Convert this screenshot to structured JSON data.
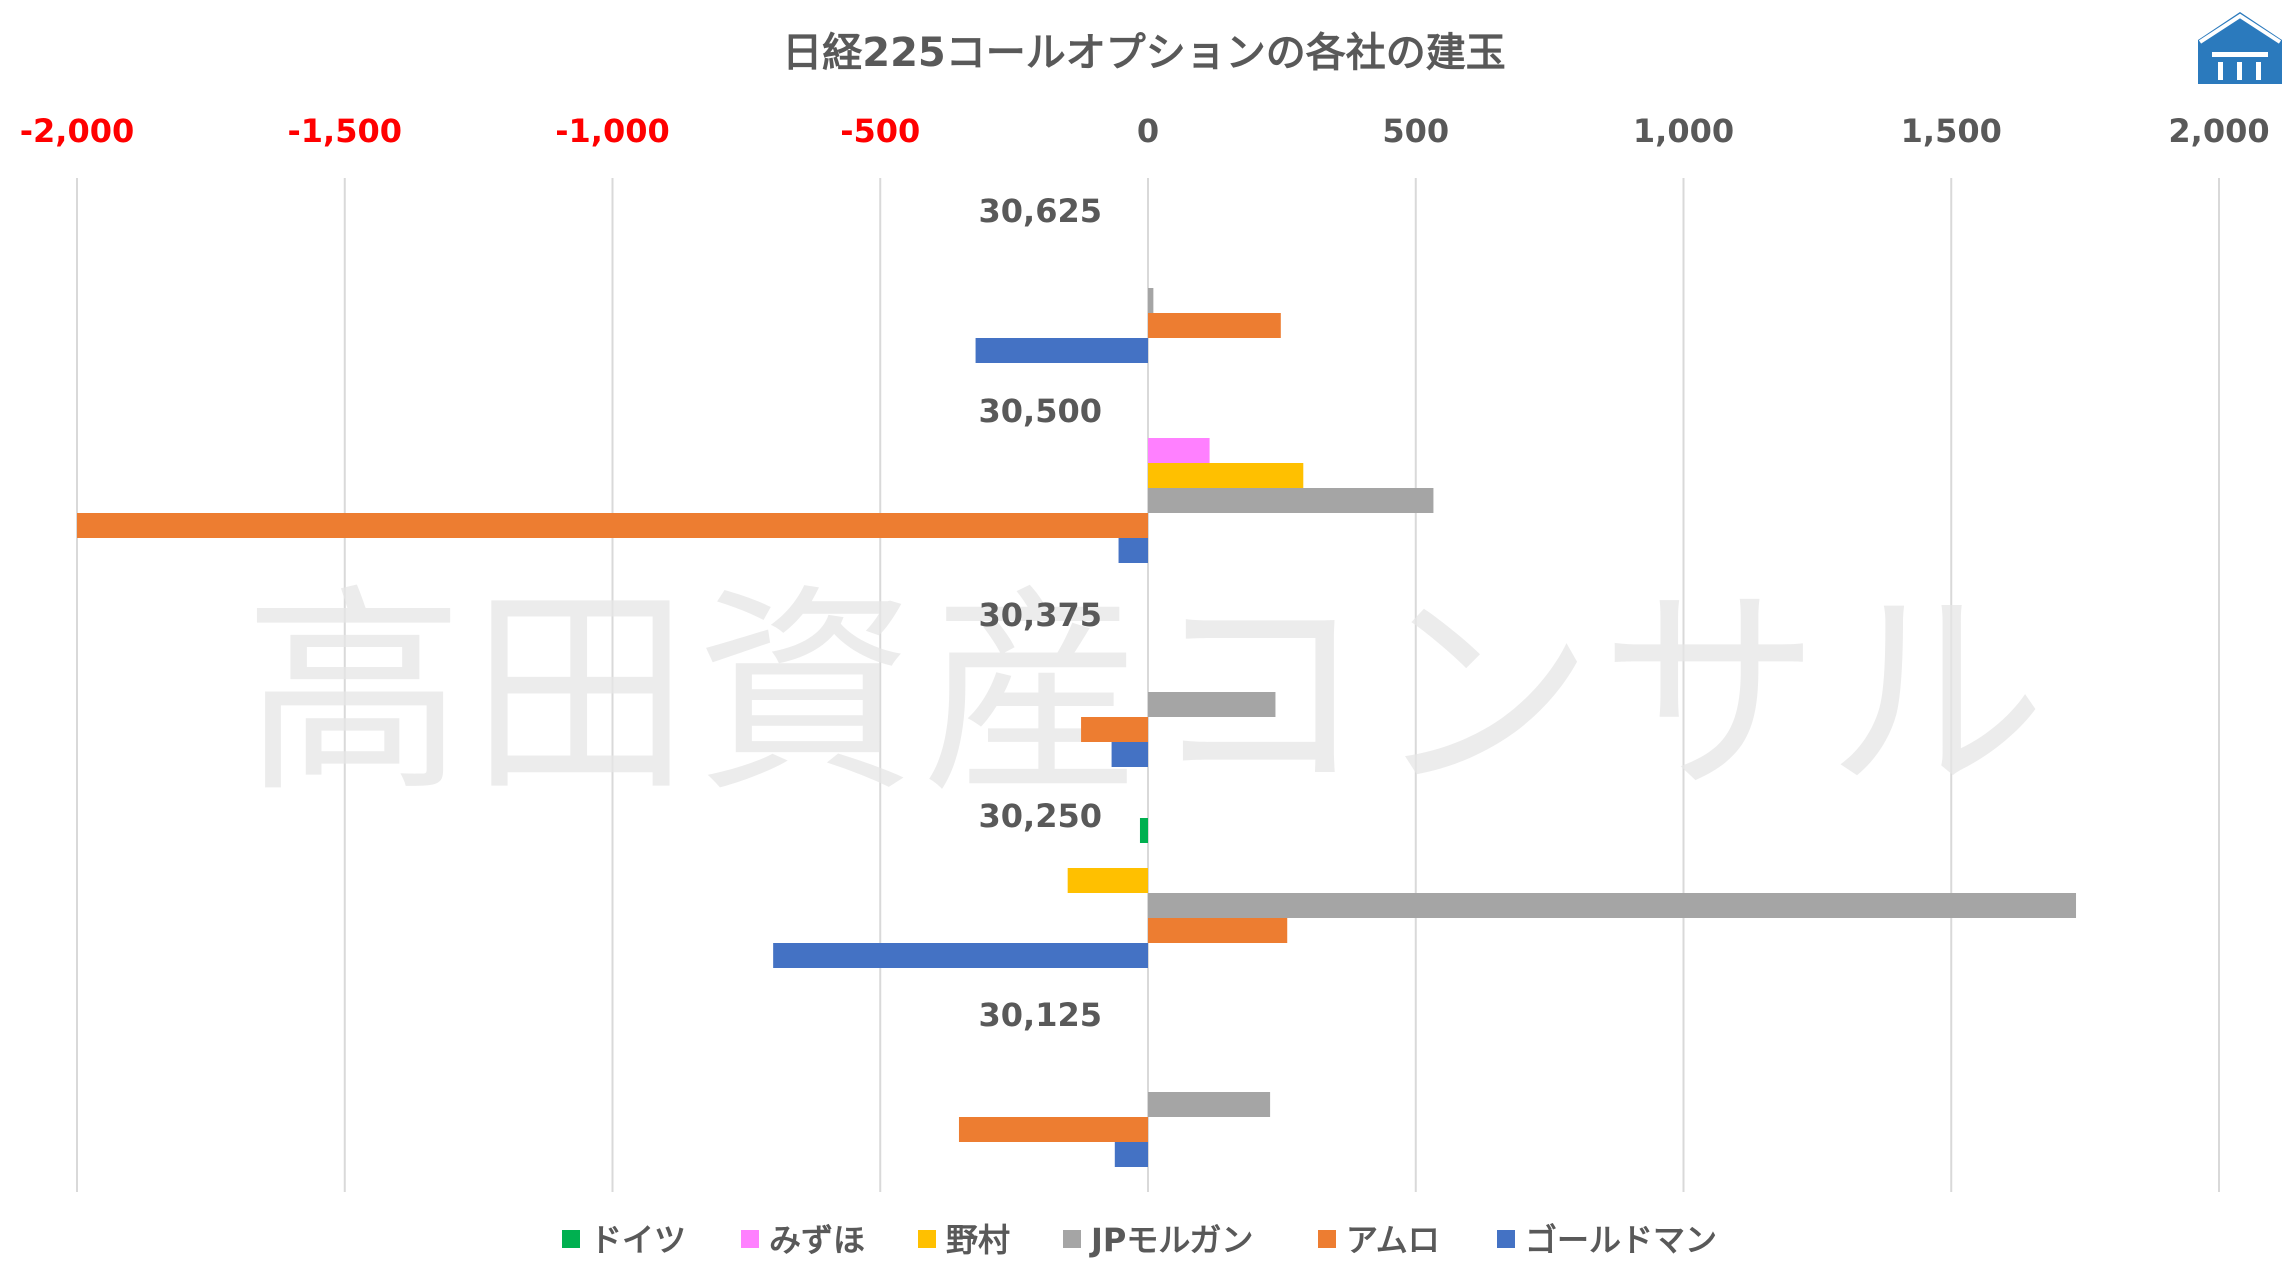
{
  "chart_data": {
    "type": "bar",
    "orientation": "horizontal",
    "title": "日経225コールオプションの各社の建玉",
    "watermark": "高田資産コンサル",
    "logo": "house-logo",
    "xlim": [
      -2000,
      2000
    ],
    "x_ticks": [
      -2000,
      -1500,
      -1000,
      -500,
      0,
      500,
      1000,
      1500,
      2000
    ],
    "x_tick_labels": [
      "-2,000",
      "-1,500",
      "-1,000",
      "-500",
      "0",
      "500",
      "1,000",
      "1,500",
      "2,000"
    ],
    "x_axis_position": "top",
    "negative_tick_color": "#ff0000",
    "positive_tick_color": "#595959",
    "grid": true,
    "legend_position": "bottom",
    "categories": [
      "30,625",
      "30,500",
      "30,375",
      "30,250",
      "30,125"
    ],
    "series": [
      {
        "name": "ドイツ",
        "color": "#00b050",
        "values": [
          0,
          0,
          0,
          -15,
          0
        ]
      },
      {
        "name": "みずほ",
        "color": "#ff80ff",
        "values": [
          0,
          115,
          0,
          0,
          0
        ]
      },
      {
        "name": "野村",
        "color": "#ffc000",
        "values": [
          0,
          290,
          0,
          -150,
          0
        ]
      },
      {
        "name": "JPモルガン",
        "color": "#a5a5a5",
        "values": [
          10,
          533,
          238,
          1733,
          228
        ]
      },
      {
        "name": "アムロ",
        "color": "#ed7d31",
        "values": [
          248,
          -2000,
          -125,
          260,
          -353
        ]
      },
      {
        "name": "ゴールドマン",
        "color": "#4472c4",
        "values": [
          -322,
          -55,
          -68,
          -700,
          -62
        ]
      }
    ]
  }
}
